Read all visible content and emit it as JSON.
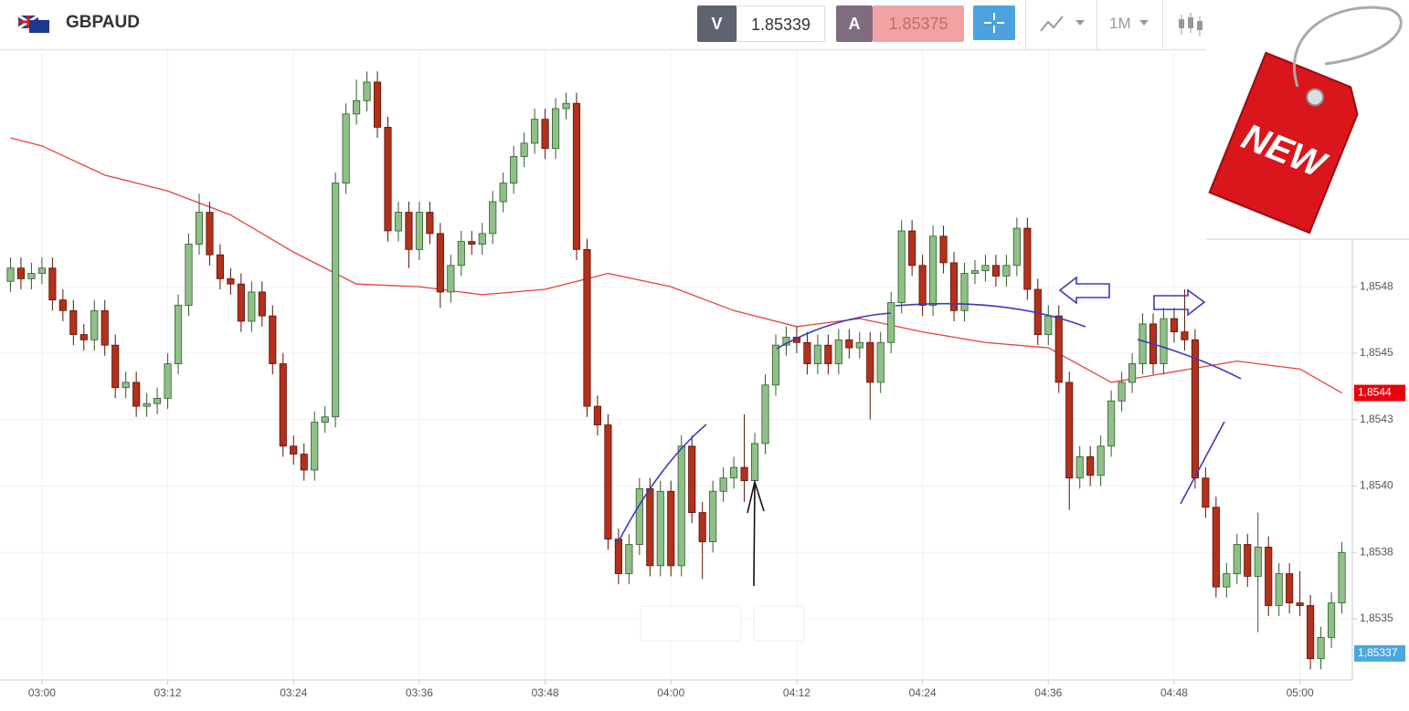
{
  "toolbar": {
    "symbol": "GBPAUD",
    "bid_label": "V",
    "bid": "1.85339",
    "ask_label": "A",
    "ask": "1.85375",
    "timeframe": "1M"
  },
  "badge_text": "NEW",
  "chart_data": {
    "type": "candlestick",
    "x": [
      "02:57",
      "02:58",
      "02:59",
      "03:00",
      "03:01",
      "03:02",
      "03:03",
      "03:04",
      "03:05",
      "03:06",
      "03:07",
      "03:08",
      "03:09",
      "03:10",
      "03:11",
      "03:12",
      "03:13",
      "03:14",
      "03:15",
      "03:16",
      "03:17",
      "03:18",
      "03:19",
      "03:20",
      "03:21",
      "03:22",
      "03:23",
      "03:24",
      "03:25",
      "03:26",
      "03:27",
      "03:28",
      "03:29",
      "03:30",
      "03:31",
      "03:32",
      "03:33",
      "03:34",
      "03:35",
      "03:36",
      "03:37",
      "03:38",
      "03:39",
      "03:40",
      "03:41",
      "03:42",
      "03:43",
      "03:44",
      "03:45",
      "03:46",
      "03:47",
      "03:48",
      "03:49",
      "03:50",
      "03:51",
      "03:52",
      "03:53",
      "03:54",
      "03:55",
      "03:56",
      "03:57",
      "03:58",
      "03:59",
      "04:00",
      "04:01",
      "04:02",
      "04:03",
      "04:04",
      "04:05",
      "04:06",
      "04:07",
      "04:08",
      "04:09",
      "04:10",
      "04:11",
      "04:12",
      "04:13",
      "04:14",
      "04:15",
      "04:16",
      "04:17",
      "04:18",
      "04:19",
      "04:20",
      "04:21",
      "04:22",
      "04:23",
      "04:24",
      "04:25",
      "04:26",
      "04:27",
      "04:28",
      "04:29",
      "04:30",
      "04:31",
      "04:32",
      "04:33",
      "04:34",
      "04:35",
      "04:36",
      "04:37",
      "04:38",
      "04:39",
      "04:40",
      "04:41",
      "04:42",
      "04:43",
      "04:44",
      "04:45",
      "04:46",
      "04:47",
      "04:48",
      "04:49",
      "04:50",
      "04:51",
      "04:52",
      "04:53",
      "04:54",
      "04:55",
      "04:56",
      "04:57",
      "04:58",
      "04:59",
      "05:00",
      "05:01",
      "05:02",
      "05:03",
      "05:04"
    ],
    "open": [
      1.85477,
      1.85482,
      1.85478,
      1.8548,
      1.85482,
      1.8547,
      1.85466,
      1.85457,
      1.85455,
      1.85466,
      1.85453,
      1.85437,
      1.85439,
      1.8543,
      1.85431,
      1.85433,
      1.85446,
      1.85468,
      1.85491,
      1.85503,
      1.85487,
      1.85478,
      1.85476,
      1.85462,
      1.85473,
      1.85464,
      1.85446,
      1.85415,
      1.85412,
      1.85406,
      1.85424,
      1.85426,
      1.85514,
      1.8554,
      1.85545,
      1.85552,
      1.85535,
      1.85496,
      1.85503,
      1.85489,
      1.85503,
      1.85495,
      1.85473,
      1.85483,
      1.85492,
      1.85491,
      1.85495,
      1.85507,
      1.85514,
      1.85524,
      1.85529,
      1.85538,
      1.85527,
      1.85542,
      1.85544,
      1.85489,
      1.8543,
      1.85423,
      1.8538,
      1.85367,
      1.85378,
      1.85399,
      1.8537,
      1.85398,
      1.8537,
      1.85415,
      1.8539,
      1.85379,
      1.85398,
      1.85403,
      1.85407,
      1.85402,
      1.85416,
      1.85438,
      1.85453,
      1.85456,
      1.85454,
      1.85446,
      1.85453,
      1.85446,
      1.85455,
      1.85452,
      1.85454,
      1.85439,
      1.85454,
      1.85469,
      1.85496,
      1.85483,
      1.85468,
      1.85494,
      1.85484,
      1.85466,
      1.8548,
      1.85481,
      1.85483,
      1.85479,
      1.85483,
      1.85497,
      1.85474,
      1.85457,
      1.85464,
      1.85439,
      1.85403,
      1.85411,
      1.85404,
      1.85415,
      1.85432,
      1.85439,
      1.85446,
      1.85461,
      1.85446,
      1.85463,
      1.85458,
      1.85455,
      1.85403,
      1.85392,
      1.85362,
      1.85367,
      1.85378,
      1.85366,
      1.85377,
      1.85355,
      1.85367,
      1.85356,
      1.85355,
      1.85335,
      1.85343,
      1.85356
    ],
    "high": [
      1.85486,
      1.85486,
      1.85484,
      1.85486,
      1.85486,
      1.85474,
      1.8547,
      1.85461,
      1.8547,
      1.8547,
      1.85457,
      1.85443,
      1.85443,
      1.85435,
      1.85437,
      1.8545,
      1.85472,
      1.85495,
      1.8551,
      1.85507,
      1.85491,
      1.85482,
      1.8548,
      1.85477,
      1.85477,
      1.85468,
      1.8545,
      1.85419,
      1.85416,
      1.85428,
      1.8543,
      1.85518,
      1.85544,
      1.85553,
      1.85556,
      1.85556,
      1.85539,
      1.85507,
      1.85507,
      1.85507,
      1.85507,
      1.85499,
      1.85487,
      1.85496,
      1.85496,
      1.85499,
      1.85511,
      1.85518,
      1.85528,
      1.85533,
      1.85542,
      1.85542,
      1.85546,
      1.85548,
      1.85548,
      1.85493,
      1.85434,
      1.85427,
      1.85384,
      1.85382,
      1.85403,
      1.85403,
      1.85402,
      1.85402,
      1.85419,
      1.85419,
      1.85394,
      1.85402,
      1.85407,
      1.85411,
      1.85427,
      1.8542,
      1.85442,
      1.85457,
      1.8546,
      1.8546,
      1.85458,
      1.85457,
      1.85457,
      1.85459,
      1.85459,
      1.85458,
      1.85458,
      1.85458,
      1.85473,
      1.855,
      1.855,
      1.85487,
      1.85498,
      1.85498,
      1.85488,
      1.85484,
      1.85485,
      1.85487,
      1.85487,
      1.85487,
      1.85501,
      1.85501,
      1.85478,
      1.85468,
      1.85468,
      1.85443,
      1.85415,
      1.85415,
      1.85419,
      1.85436,
      1.85443,
      1.8545,
      1.85465,
      1.85465,
      1.85467,
      1.85467,
      1.85474,
      1.85459,
      1.85407,
      1.85396,
      1.85371,
      1.85382,
      1.85382,
      1.8539,
      1.85381,
      1.85371,
      1.85371,
      1.85368,
      1.85359,
      1.85347,
      1.8536,
      1.85379
    ],
    "low": [
      1.85473,
      1.85474,
      1.85474,
      1.85476,
      1.85466,
      1.85462,
      1.85453,
      1.85451,
      1.85451,
      1.85449,
      1.85433,
      1.85433,
      1.85426,
      1.85426,
      1.85427,
      1.85429,
      1.85442,
      1.85464,
      1.85487,
      1.85483,
      1.85474,
      1.85472,
      1.85458,
      1.85458,
      1.8546,
      1.85442,
      1.85411,
      1.85408,
      1.85402,
      1.85402,
      1.8542,
      1.85422,
      1.8551,
      1.85536,
      1.85541,
      1.85531,
      1.85492,
      1.85492,
      1.85482,
      1.85485,
      1.85491,
      1.85467,
      1.85469,
      1.85479,
      1.85487,
      1.85487,
      1.85491,
      1.85503,
      1.8551,
      1.8552,
      1.85525,
      1.85523,
      1.85523,
      1.85538,
      1.85485,
      1.85426,
      1.85419,
      1.85376,
      1.85363,
      1.85363,
      1.85374,
      1.85366,
      1.85366,
      1.85366,
      1.85366,
      1.85386,
      1.85365,
      1.85375,
      1.85394,
      1.85399,
      1.85394,
      1.85398,
      1.85412,
      1.85434,
      1.85449,
      1.8545,
      1.85442,
      1.85442,
      1.85442,
      1.85442,
      1.85448,
      1.85448,
      1.85425,
      1.85435,
      1.8545,
      1.85465,
      1.85479,
      1.85464,
      1.85464,
      1.8548,
      1.85462,
      1.85462,
      1.85476,
      1.85477,
      1.85475,
      1.85475,
      1.85479,
      1.8547,
      1.85453,
      1.85453,
      1.85435,
      1.85391,
      1.85399,
      1.854,
      1.854,
      1.85411,
      1.85428,
      1.85435,
      1.85442,
      1.85442,
      1.85442,
      1.85454,
      1.85451,
      1.85399,
      1.85388,
      1.85358,
      1.85358,
      1.85363,
      1.85362,
      1.85345,
      1.85351,
      1.85351,
      1.85352,
      1.85351,
      1.85331,
      1.85331,
      1.85339,
      1.85352
    ],
    "close": [
      1.85482,
      1.85478,
      1.8548,
      1.85482,
      1.8547,
      1.85466,
      1.85457,
      1.85455,
      1.85466,
      1.85453,
      1.85437,
      1.85439,
      1.8543,
      1.85431,
      1.85433,
      1.85446,
      1.85468,
      1.85491,
      1.85503,
      1.85487,
      1.85478,
      1.85476,
      1.85462,
      1.85473,
      1.85464,
      1.85446,
      1.85415,
      1.85412,
      1.85406,
      1.85424,
      1.85426,
      1.85514,
      1.8554,
      1.85545,
      1.85552,
      1.85535,
      1.85496,
      1.85503,
      1.85489,
      1.85503,
      1.85495,
      1.85473,
      1.85483,
      1.85492,
      1.85491,
      1.85495,
      1.85507,
      1.85514,
      1.85524,
      1.85529,
      1.85538,
      1.85527,
      1.85542,
      1.85544,
      1.85489,
      1.8543,
      1.85423,
      1.8538,
      1.85367,
      1.85378,
      1.85399,
      1.8537,
      1.85398,
      1.8537,
      1.85415,
      1.8539,
      1.85379,
      1.85398,
      1.85403,
      1.85407,
      1.85402,
      1.85416,
      1.85438,
      1.85453,
      1.85456,
      1.85454,
      1.85446,
      1.85453,
      1.85446,
      1.85455,
      1.85452,
      1.85454,
      1.85439,
      1.85454,
      1.85469,
      1.85496,
      1.85483,
      1.85468,
      1.85494,
      1.85484,
      1.85466,
      1.8548,
      1.85481,
      1.85483,
      1.85479,
      1.85483,
      1.85497,
      1.85474,
      1.85457,
      1.85464,
      1.85439,
      1.85403,
      1.85411,
      1.85404,
      1.85415,
      1.85432,
      1.85439,
      1.85446,
      1.85461,
      1.85446,
      1.85463,
      1.85458,
      1.85455,
      1.85403,
      1.85392,
      1.85362,
      1.85367,
      1.85378,
      1.85366,
      1.85377,
      1.85355,
      1.85367,
      1.85356,
      1.85355,
      1.85335,
      1.85343,
      1.85356,
      1.85375
    ],
    "up_color": "#8fc088",
    "down_color": "#b3301a",
    "ma": {
      "color": "#e8413a",
      "x": [
        "02:57",
        "03:00",
        "03:06",
        "03:12",
        "03:18",
        "03:24",
        "03:30",
        "03:36",
        "03:42",
        "03:48",
        "03:54",
        "04:00",
        "04:06",
        "04:12",
        "04:18",
        "04:24",
        "04:30",
        "04:36",
        "04:42",
        "04:48",
        "04:54",
        "05:00",
        "05:04"
      ],
      "values": [
        1.85531,
        1.85528,
        1.85517,
        1.85511,
        1.85502,
        1.85488,
        1.85476,
        1.85475,
        1.85472,
        1.85474,
        1.8548,
        1.85475,
        1.85466,
        1.8546,
        1.85463,
        1.85458,
        1.85454,
        1.85452,
        1.85439,
        1.85443,
        1.85447,
        1.85444,
        1.85435
      ]
    },
    "xlim": [
      "02:56",
      "05:05"
    ],
    "xticks": [
      "03:00",
      "03:12",
      "03:24",
      "03:36",
      "03:48",
      "04:00",
      "04:12",
      "04:24",
      "04:36",
      "04:48",
      "05:00"
    ],
    "ylim": [
      1.85327,
      1.85564
    ],
    "yticks": [
      {
        "value": 1.85475,
        "label": "1,8548"
      },
      {
        "value": 1.8545,
        "label": "1,8545"
      },
      {
        "value": 1.85425,
        "label": "1,8543"
      },
      {
        "value": 1.854,
        "label": "1,8540"
      },
      {
        "value": 1.85375,
        "label": "1,8538"
      },
      {
        "value": 1.8535,
        "label": "1,8535"
      }
    ],
    "price_markers": [
      {
        "value": 1.85435,
        "label": "1,8544",
        "color": "#e8000b"
      },
      {
        "value": 1.85337,
        "label": "1,85337",
        "color": "#4aa8dc"
      }
    ],
    "grid": true
  }
}
